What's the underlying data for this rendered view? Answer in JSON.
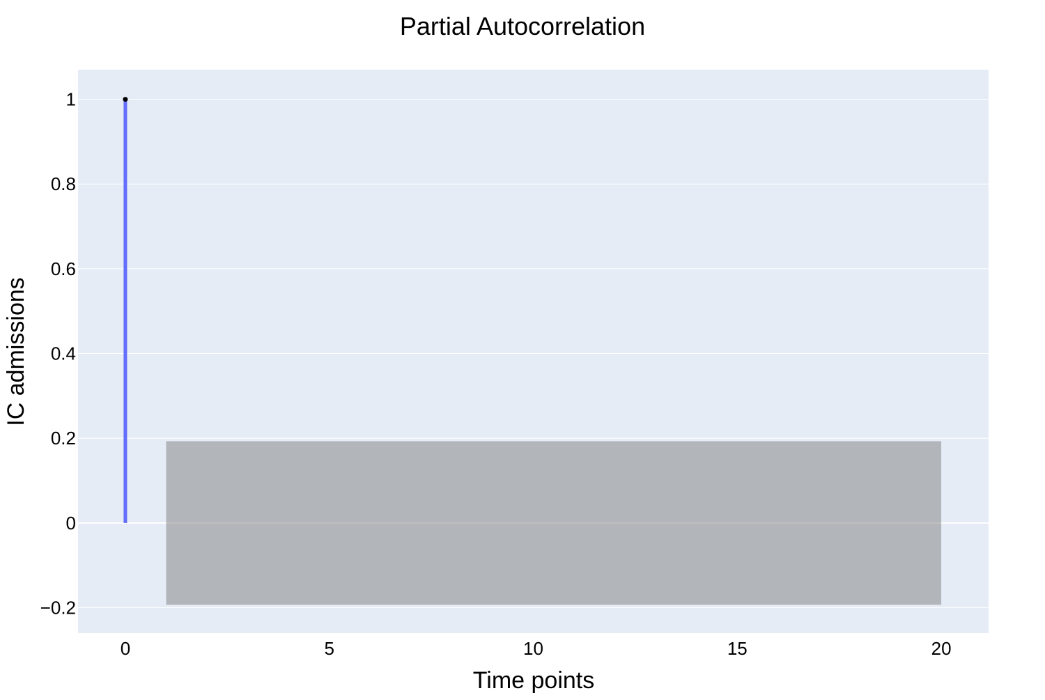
{
  "chart_data": {
    "type": "bar",
    "title": "Partial Autocorrelation",
    "xlabel": "Time points",
    "ylabel": "IC admissions",
    "xlim": [
      -1.16,
      21.16
    ],
    "ylim": [
      -0.26,
      1.07
    ],
    "x_ticks": [
      0,
      5,
      10,
      15,
      20
    ],
    "y_ticks": [
      -0.2,
      0,
      0.2,
      0.4,
      0.6,
      0.8,
      1
    ],
    "y_tick_labels": [
      "−0.2",
      "0",
      "0.2",
      "0.4",
      "0.6",
      "0.8",
      "1"
    ],
    "x_tick_labels": [
      "0",
      "5",
      "10",
      "15",
      "20"
    ],
    "grid": true,
    "legend": "none",
    "series": [
      {
        "kind": "stem",
        "x": [
          0
        ],
        "values": [
          1
        ],
        "line_color": "#636efa",
        "marker_color": "#000000"
      }
    ],
    "confidence_band": {
      "x": [
        1,
        20
      ],
      "upper": 0.193,
      "lower": -0.193,
      "color": "rgba(128,128,128,0.5)"
    },
    "colors": {
      "plot_background": "#e5ecf6",
      "grid": "#ffffff"
    }
  }
}
